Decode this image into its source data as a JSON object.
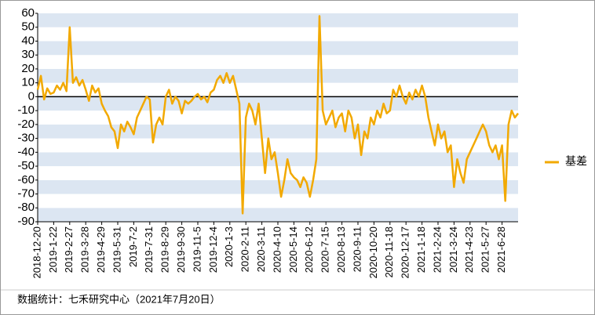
{
  "chart_data": {
    "type": "line",
    "categories": [
      "2018-12-20",
      null,
      null,
      null,
      null,
      "2019-1-22",
      null,
      null,
      null,
      null,
      "2019-2-27",
      null,
      null,
      null,
      null,
      "2019-3-28",
      null,
      null,
      null,
      null,
      "2019-4-29",
      null,
      null,
      null,
      null,
      "2019-5-31",
      null,
      null,
      null,
      null,
      "2019-7-2",
      null,
      null,
      null,
      null,
      "2019-7-31",
      null,
      null,
      null,
      null,
      "2019-8-29",
      null,
      null,
      null,
      null,
      "2019-9-30",
      null,
      null,
      null,
      null,
      "2019-11-5",
      null,
      null,
      null,
      null,
      "2019-12-4",
      null,
      null,
      null,
      null,
      "2020-1-3",
      null,
      null,
      null,
      null,
      "2020-2-11",
      null,
      null,
      null,
      null,
      "2020-3-11",
      null,
      null,
      null,
      null,
      "2020-4-10",
      null,
      null,
      null,
      null,
      "2020-5-14",
      null,
      null,
      null,
      null,
      "2020-6-12",
      null,
      null,
      null,
      null,
      "2020-7-15",
      null,
      null,
      null,
      null,
      "2020-8-13",
      null,
      null,
      null,
      null,
      "2020-9-11",
      null,
      null,
      null,
      null,
      "2020-10-20",
      null,
      null,
      null,
      null,
      "2020-11-18",
      null,
      null,
      null,
      null,
      "2020-12-17",
      null,
      null,
      null,
      null,
      "2021-1-18",
      null,
      null,
      null,
      null,
      "2021-2-24",
      null,
      null,
      null,
      null,
      "2021-3-24",
      null,
      null,
      null,
      null,
      "2021-4-23",
      null,
      null,
      null,
      null,
      "2021-5-27",
      null,
      null,
      null,
      null,
      "2021-6-28",
      null,
      null,
      null,
      null,
      null
    ],
    "series": [
      {
        "name": "基差",
        "color": "#f2a900",
        "values": [
          5,
          15,
          -2,
          6,
          2,
          3,
          8,
          5,
          10,
          4,
          50,
          10,
          14,
          8,
          12,
          5,
          -3,
          8,
          3,
          6,
          -5,
          -10,
          -14,
          -22,
          -25,
          -37,
          -20,
          -25,
          -18,
          -22,
          -27,
          -15,
          -10,
          -5,
          0,
          -2,
          -33,
          -20,
          -15,
          -20,
          0,
          5,
          -5,
          0,
          -3,
          -12,
          -3,
          -5,
          -3,
          0,
          2,
          -2,
          0,
          -4,
          3,
          5,
          12,
          15,
          10,
          17,
          10,
          15,
          5,
          -5,
          -84,
          -15,
          -5,
          -10,
          -20,
          -5,
          -30,
          -55,
          -30,
          -45,
          -40,
          -55,
          -72,
          -60,
          -45,
          -55,
          -58,
          -60,
          -65,
          -58,
          -62,
          -72,
          -60,
          -45,
          58,
          -10,
          -20,
          -15,
          -10,
          -22,
          -15,
          -12,
          -25,
          -10,
          -15,
          -30,
          -20,
          -42,
          -25,
          -30,
          -15,
          -20,
          -10,
          -15,
          -5,
          -12,
          -10,
          5,
          0,
          8,
          0,
          -5,
          3,
          -2,
          5,
          0,
          8,
          0,
          -15,
          -25,
          -35,
          -20,
          -30,
          -25,
          -40,
          -35,
          -65,
          -45,
          -55,
          -62,
          -45,
          -40,
          -35,
          -30,
          -25,
          -20,
          -25,
          -35,
          -40,
          -35,
          -45,
          -35,
          -75,
          -20,
          -10,
          -15,
          -12
        ]
      }
    ],
    "ylim": [
      -90,
      60
    ],
    "yticks": [
      -90,
      -80,
      -70,
      -60,
      -50,
      -40,
      -30,
      -20,
      -10,
      0,
      10,
      20,
      30,
      40,
      50,
      60
    ],
    "grid": true,
    "legend": "right",
    "source": "数据统计：七禾研究中心（2021年7月20日）"
  }
}
